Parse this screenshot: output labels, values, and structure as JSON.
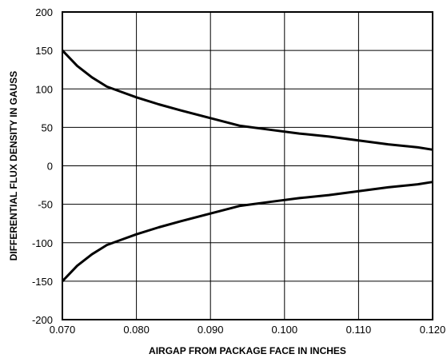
{
  "chart_data": {
    "type": "line",
    "xlabel": "AIRGAP FROM PACKAGE FACE IN INCHES",
    "ylabel": "DIFFERENTIAL FLUX DENSITY IN GAUSS",
    "xlim": [
      0.07,
      0.12
    ],
    "ylim": [
      -200,
      200
    ],
    "x_ticks": [
      "0.070",
      "0.080",
      "0.090",
      "0.100",
      "0.110",
      "0.120"
    ],
    "y_ticks": [
      "200",
      "150",
      "100",
      "50",
      "0",
      "-50",
      "-100",
      "-150",
      "-200"
    ],
    "grid": true,
    "legend": "none",
    "line_color": "#000000",
    "series": [
      {
        "x": [
          0.07,
          0.072,
          0.074,
          0.076,
          0.078,
          0.08,
          0.083,
          0.086,
          0.09,
          0.094,
          0.098,
          0.102,
          0.106,
          0.11,
          0.114,
          0.118,
          0.12
        ],
        "values": [
          150,
          130,
          115,
          103,
          96,
          89,
          80,
          72,
          62,
          52,
          47,
          42,
          38,
          33,
          28,
          24,
          21
        ]
      },
      {
        "x": [
          0.07,
          0.072,
          0.074,
          0.076,
          0.078,
          0.08,
          0.083,
          0.086,
          0.09,
          0.094,
          0.098,
          0.102,
          0.106,
          0.11,
          0.114,
          0.118,
          0.12
        ],
        "values": [
          -150,
          -130,
          -115,
          -103,
          -96,
          -89,
          -80,
          -72,
          -62,
          -52,
          -47,
          -42,
          -38,
          -33,
          -28,
          -24,
          -21
        ]
      }
    ]
  }
}
